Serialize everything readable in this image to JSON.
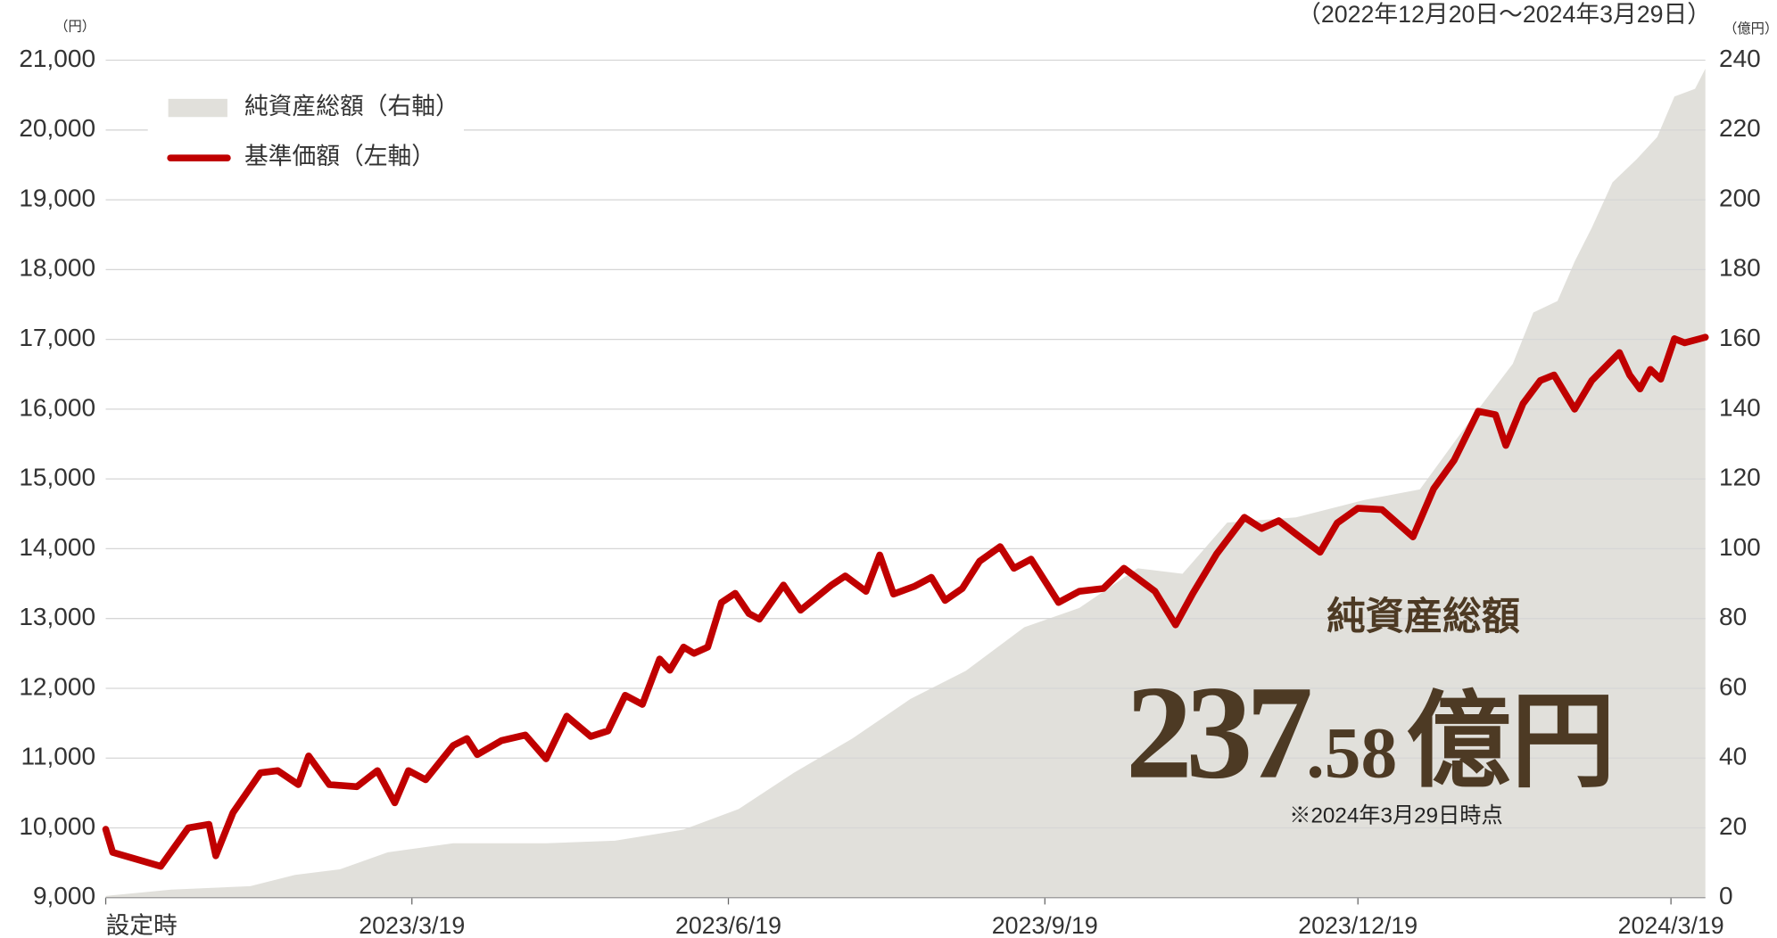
{
  "chart_data": {
    "type": "line",
    "subtitle": "（2022年12月20日～2024年3月29日）",
    "y_unit": "（円）",
    "y2_unit": "（億円）",
    "xlim": [
      "2022-12-20",
      "2024-03-29"
    ],
    "xticks": [
      {
        "value": "2022-12-20",
        "label": "設定時"
      },
      {
        "value": "2023-03-19",
        "label": "2023/3/19"
      },
      {
        "value": "2023-06-19",
        "label": "2023/6/19"
      },
      {
        "value": "2023-09-19",
        "label": "2023/9/19"
      },
      {
        "value": "2023-12-19",
        "label": "2023/12/19"
      },
      {
        "value": "2024-03-19",
        "label": "2024/3/19"
      }
    ],
    "ylim": [
      9000,
      21000
    ],
    "yticks": [
      {
        "value": 9000,
        "label": "9,000"
      },
      {
        "value": 10000,
        "label": "10,000"
      },
      {
        "value": 11000,
        "label": "11,000"
      },
      {
        "value": 12000,
        "label": "12,000"
      },
      {
        "value": 13000,
        "label": "13,000"
      },
      {
        "value": 14000,
        "label": "14,000"
      },
      {
        "value": 15000,
        "label": "15,000"
      },
      {
        "value": 16000,
        "label": "16,000"
      },
      {
        "value": 17000,
        "label": "17,000"
      },
      {
        "value": 18000,
        "label": "18,000"
      },
      {
        "value": 19000,
        "label": "19,000"
      },
      {
        "value": 20000,
        "label": "20,000"
      },
      {
        "value": 21000,
        "label": "21,000"
      }
    ],
    "y2lim": [
      0,
      240
    ],
    "y2ticks": [
      0,
      20,
      40,
      60,
      80,
      100,
      120,
      140,
      160,
      180,
      200,
      220,
      240
    ],
    "grid": true,
    "legend": "top-left",
    "series": [
      {
        "name": "純資産総額（右軸）",
        "kind": "area",
        "axis": "y2",
        "color": "#e1e0db",
        "x": [
          "2022-12-20",
          "2023-01-08",
          "2023-01-31",
          "2023-02-13",
          "2023-02-26",
          "2023-03-12",
          "2023-03-31",
          "2023-04-27",
          "2023-05-17",
          "2023-06-06",
          "2023-06-22",
          "2023-07-08",
          "2023-07-25",
          "2023-08-11",
          "2023-08-27",
          "2023-09-13",
          "2023-09-29",
          "2023-10-16",
          "2023-10-29",
          "2023-11-11",
          "2023-12-01",
          "2023-12-21",
          "2024-01-06",
          "2024-01-23",
          "2024-02-02",
          "2024-02-08",
          "2024-02-15",
          "2024-02-20",
          "2024-02-25",
          "2024-03-02",
          "2024-03-09",
          "2024-03-15",
          "2024-03-20",
          "2024-03-26",
          "2024-03-29"
        ],
        "values": [
          0.5,
          2.3,
          3.3,
          6.5,
          8.1,
          13,
          15.6,
          15.6,
          16.3,
          19.5,
          25.4,
          35.8,
          45.6,
          57,
          65,
          77.5,
          83,
          94.4,
          92.8,
          107.5,
          109,
          114,
          117,
          140,
          153,
          167.7,
          171,
          182.3,
          192,
          205,
          211.6,
          218,
          229.6,
          231.8,
          237.58
        ]
      },
      {
        "name": "基準価額（左軸）",
        "kind": "line",
        "axis": "y",
        "color": "#c00000",
        "x": [
          "2022-12-20",
          "2022-12-22",
          "2023-01-05",
          "2023-01-13",
          "2023-01-19",
          "2023-01-21",
          "2023-01-26",
          "2023-02-03",
          "2023-02-08",
          "2023-02-14",
          "2023-02-17",
          "2023-02-23",
          "2023-03-03",
          "2023-03-09",
          "2023-03-14",
          "2023-03-18",
          "2023-03-23",
          "2023-03-31",
          "2023-04-04",
          "2023-04-07",
          "2023-04-14",
          "2023-04-21",
          "2023-04-27",
          "2023-05-03",
          "2023-05-10",
          "2023-05-15",
          "2023-05-20",
          "2023-05-25",
          "2023-05-30",
          "2023-06-02",
          "2023-06-06",
          "2023-06-09",
          "2023-06-13",
          "2023-06-17",
          "2023-06-21",
          "2023-06-25",
          "2023-06-28",
          "2023-07-05",
          "2023-07-10",
          "2023-07-19",
          "2023-07-23",
          "2023-07-29",
          "2023-08-02",
          "2023-08-06",
          "2023-08-12",
          "2023-08-17",
          "2023-08-21",
          "2023-08-26",
          "2023-08-31",
          "2023-09-06",
          "2023-09-10",
          "2023-09-15",
          "2023-09-23",
          "2023-09-29",
          "2023-10-06",
          "2023-10-12",
          "2023-10-21",
          "2023-10-27",
          "2023-11-01",
          "2023-11-08",
          "2023-11-16",
          "2023-11-21",
          "2023-11-26",
          "2023-12-01",
          "2023-12-08",
          "2023-12-13",
          "2023-12-19",
          "2023-12-26",
          "2024-01-04",
          "2024-01-10",
          "2024-01-16",
          "2024-01-23",
          "2024-01-28",
          "2024-01-31",
          "2024-02-05",
          "2024-02-10",
          "2024-02-14",
          "2024-02-20",
          "2024-02-25",
          "2024-03-04",
          "2024-03-07",
          "2024-03-10",
          "2024-03-13",
          "2024-03-16",
          "2024-03-20",
          "2024-03-23",
          "2024-03-29"
        ],
        "values": [
          9980,
          9650,
          9450,
          10000,
          10050,
          9600,
          10220,
          10790,
          10820,
          10620,
          11030,
          10620,
          10590,
          10820,
          10360,
          10820,
          10690,
          11180,
          11280,
          11050,
          11250,
          11330,
          10990,
          11600,
          11310,
          11390,
          11900,
          11770,
          12420,
          12260,
          12590,
          12500,
          12590,
          13230,
          13360,
          13070,
          12990,
          13480,
          13120,
          13480,
          13610,
          13390,
          13910,
          13350,
          13460,
          13590,
          13260,
          13430,
          13820,
          14030,
          13720,
          13850,
          13230,
          13390,
          13430,
          13720,
          13390,
          12910,
          13360,
          13930,
          14450,
          14290,
          14400,
          14210,
          13950,
          14370,
          14580,
          14560,
          14170,
          14860,
          15270,
          15970,
          15920,
          15480,
          16080,
          16410,
          16490,
          16000,
          16410,
          16810,
          16490,
          16290,
          16570,
          16430,
          17010,
          16950,
          17030
        ]
      }
    ],
    "annotation": {
      "title": "純資産総額",
      "value_label": {
        "integer": "237",
        "decimal": ".58",
        "unit": "億円"
      },
      "note": "※2024年3月29日時点"
    }
  }
}
